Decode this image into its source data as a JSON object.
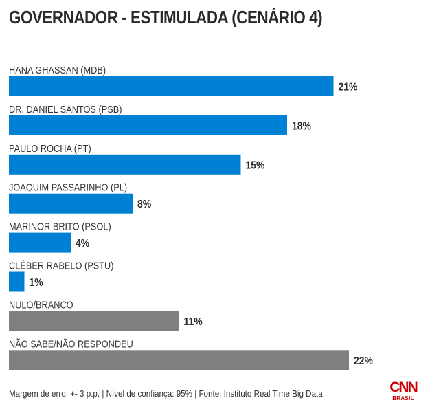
{
  "chart_data": {
    "type": "bar",
    "orientation": "horizontal",
    "title": "GOVERNADOR - ESTIMULADA (CENÁRIO 4)",
    "xlabel": "",
    "ylabel": "",
    "xlim": [
      0,
      22
    ],
    "grid": false,
    "value_suffix": "%",
    "categories": [
      "HANA GHASSAN (MDB)",
      "DR. DANIEL SANTOS (PSB)",
      "PAULO ROCHA (PT)",
      "JOAQUIM PASSARINHO (PL)",
      "MARINOR BRITO (PSOL)",
      "CLÉBER RABELO (PSTU)",
      "NULO/BRANCO",
      "NÃO SABE/NÃO RESPONDEU"
    ],
    "values": [
      21,
      18,
      15,
      8,
      4,
      1,
      11,
      22
    ],
    "value_labels": [
      "21%",
      "18%",
      "15%",
      "8%",
      "4%",
      "1%",
      "11%",
      "22%"
    ],
    "bar_colors": [
      "#0080d4",
      "#0080d4",
      "#0080d4",
      "#0080d4",
      "#0080d4",
      "#0080d4",
      "#808080",
      "#808080"
    ]
  },
  "colors": {
    "candidate": "#0080d4",
    "other": "#808080",
    "brand": "#cc0000"
  },
  "footer": {
    "note": "Margem de erro: +- 3 p.p. | Nível de confiança: 95% | Fonte: Instituto Real Time Big Data"
  },
  "logo": {
    "name": "CNN",
    "sub": "BRASIL"
  }
}
